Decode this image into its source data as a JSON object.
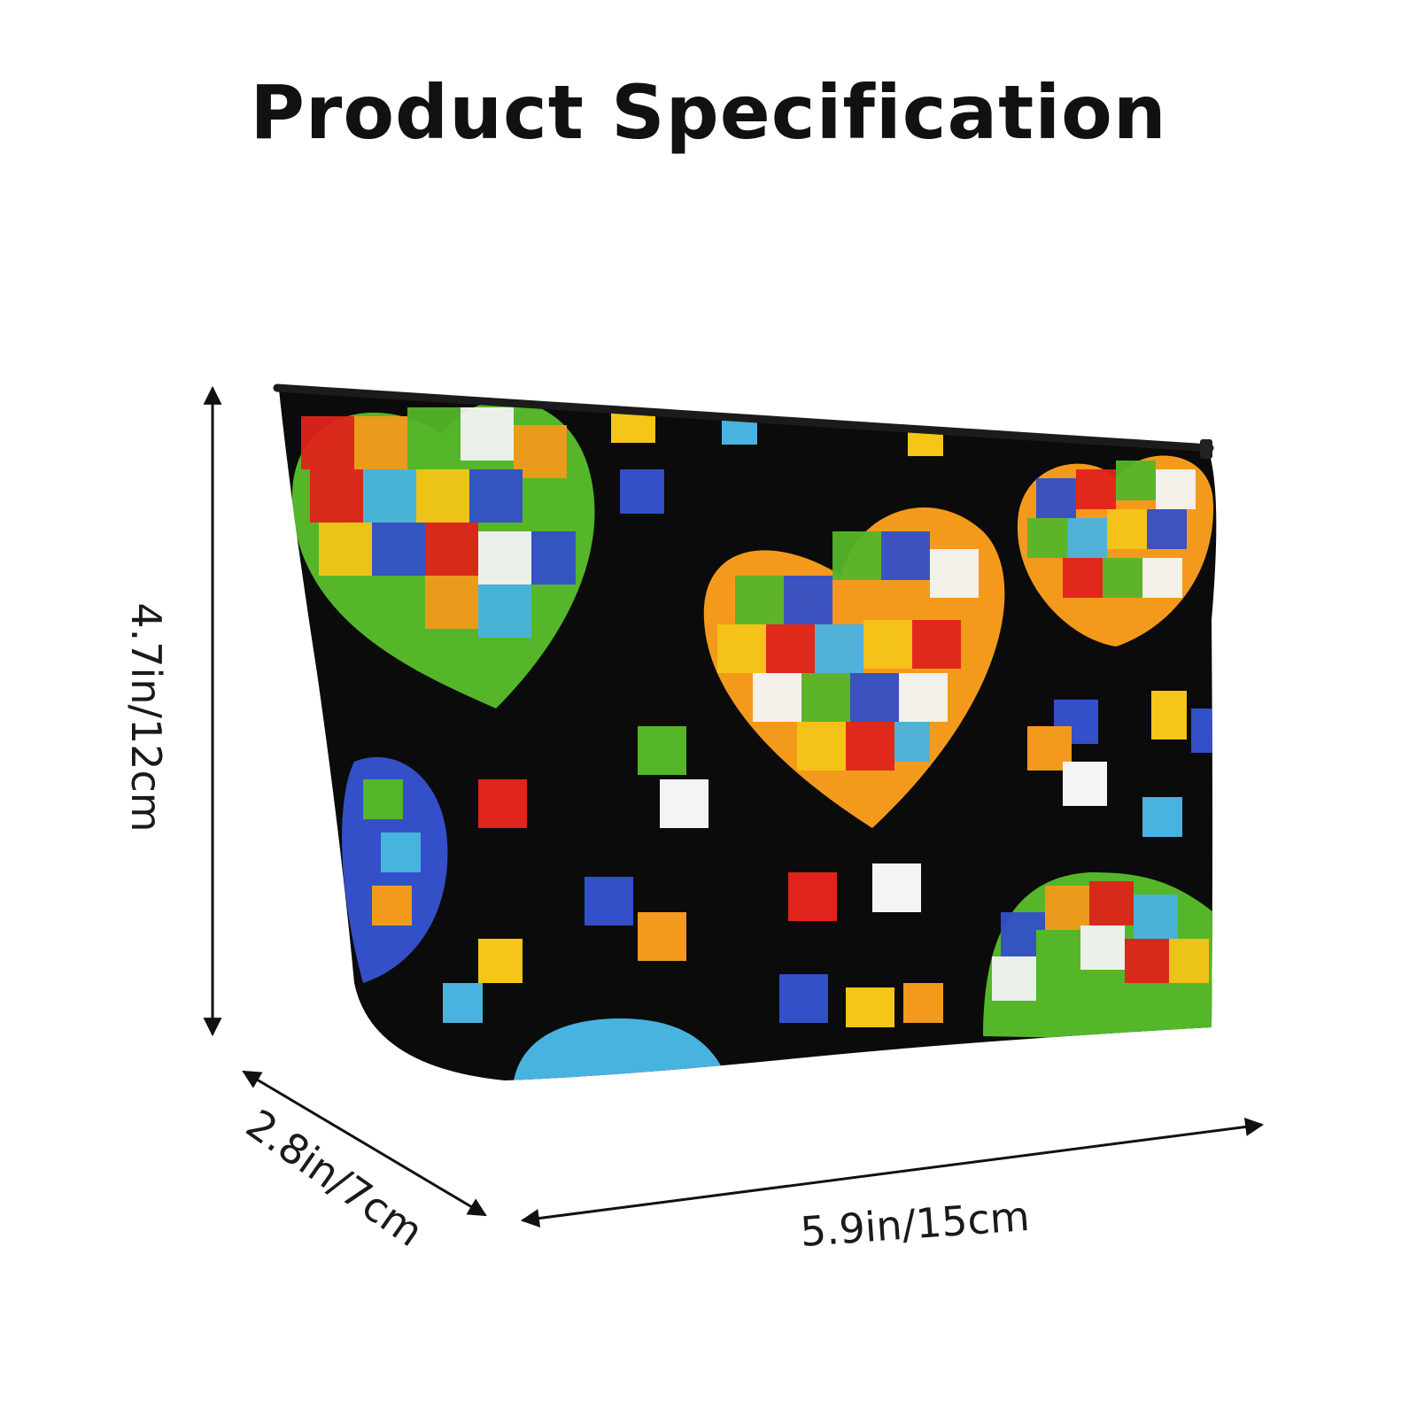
{
  "title": "Product Specification",
  "dimensions": {
    "height": "4.7in/12cm",
    "depth": "2.8in/7cm",
    "width": "5.9in/15cm"
  },
  "colors": {
    "bag_body": "#0b0b0b",
    "puzzle_red": "#e0231b",
    "puzzle_orange": "#f39a1c",
    "puzzle_yellow": "#f5c518",
    "puzzle_green": "#55b62a",
    "puzzle_blue": "#3350c8",
    "puzzle_light_blue": "#49b3e0",
    "puzzle_white": "#f4f4f4"
  }
}
